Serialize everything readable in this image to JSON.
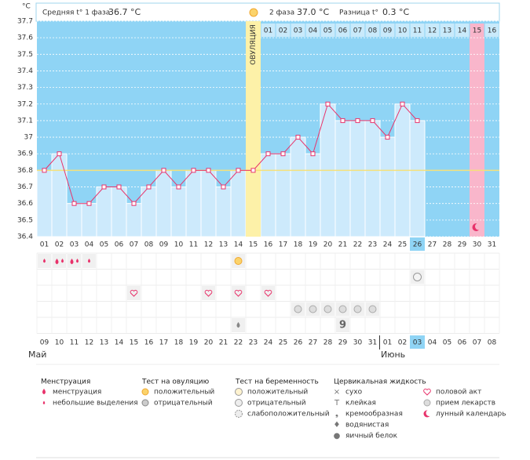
{
  "header": {
    "phase1_label": "Средняя t° 1 фаза",
    "phase1_value": "36.7 °C",
    "phase2_label": "2 фаза",
    "phase2_value": "37.0 °C",
    "diff_label": "Разница t°",
    "diff_value": "0.3 °C"
  },
  "chart_data": {
    "type": "line",
    "y_label": "°C",
    "ovulation_label": "ОВУЛЯЦИЯ",
    "categories": [
      "01",
      "02",
      "03",
      "04",
      "05",
      "06",
      "07",
      "08",
      "09",
      "10",
      "11",
      "12",
      "13",
      "14",
      "15",
      "16",
      "17",
      "18",
      "19",
      "20",
      "21",
      "22",
      "23",
      "24",
      "25",
      "26",
      "27",
      "28",
      "29",
      "30",
      "31"
    ],
    "values": [
      36.8,
      36.9,
      36.6,
      36.6,
      36.7,
      36.7,
      36.6,
      36.7,
      36.8,
      36.7,
      36.8,
      36.8,
      36.7,
      36.8,
      36.8,
      36.9,
      36.9,
      37.0,
      36.9,
      37.2,
      37.1,
      37.1,
      37.1,
      37.0,
      37.2,
      37.1,
      null,
      null,
      null,
      null,
      null
    ],
    "color": "#e8336b",
    "coverline": 36.8,
    "ylim": [
      36.4,
      37.7
    ],
    "yticks": [
      36.4,
      36.5,
      36.6,
      36.7,
      36.8,
      36.9,
      37,
      37.1,
      37.2,
      37.3,
      37.4,
      37.5,
      37.6,
      37.7
    ],
    "grid": true,
    "cycle_day_labels": [
      null,
      null,
      null,
      null,
      null,
      null,
      null,
      null,
      null,
      null,
      null,
      null,
      null,
      null,
      null,
      "01",
      "02",
      "03",
      "04",
      "05",
      "06",
      "07",
      "08",
      "09",
      "10",
      "11",
      "12",
      "13",
      "14",
      "15",
      "16"
    ],
    "dates": [
      "09",
      "10",
      "11",
      "12",
      "13",
      "14",
      "15",
      "16",
      "17",
      "18",
      "19",
      "20",
      "21",
      "22",
      "23",
      "24",
      "25",
      "26",
      "27",
      "28",
      "29",
      "30",
      "31",
      "01",
      "02",
      "03",
      "04",
      "05",
      "06",
      "07",
      "08"
    ],
    "months": [
      "Май",
      "Июнь"
    ]
  },
  "legend": [
    {
      "title": "Менструация",
      "items": [
        "менструация",
        "небольшие выделения"
      ]
    },
    {
      "title": "Тест на овуляцию",
      "items": [
        "положительный",
        "отрицательный"
      ]
    },
    {
      "title": "Тест на беременность",
      "items": [
        "положительный",
        "отрицательный",
        "слабоположительный"
      ]
    },
    {
      "title": "Цервикальная жидкость",
      "items": [
        "сухо",
        "клейкая",
        "кремообразная",
        "водянистая",
        "яичный белок"
      ]
    }
  ],
  "legend_extra": [
    "половой акт",
    "прием лекарств",
    "лунный календарь"
  ]
}
